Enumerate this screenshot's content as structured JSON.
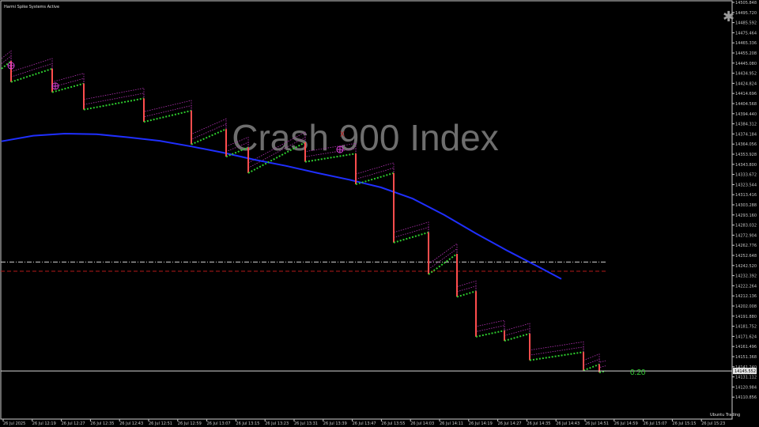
{
  "window": {
    "indicator_status": "Harmi Spike Systems Active",
    "watermark": "Crash 900 Index",
    "countdown": "0:20",
    "footer_mode": "Ubuntu Trading",
    "settings_icon": "asterisk-icon",
    "marker_label": "X"
  },
  "colors": {
    "background": "#000000",
    "up_steps": "#2ecc2e",
    "spike": "#ff4d4d",
    "moving_average": "#1f2fff",
    "bands": "#b533b5",
    "level_line_1": "#cfcfcf",
    "level_line_2": "#b31a1a",
    "current_price_line": "#d8d8d8",
    "marker": "#b31a1a",
    "circle_marker": "#d63fd6"
  },
  "price_box": "14145.552",
  "chart_data": {
    "type": "line",
    "title": "Crash 900 Index",
    "y_axis_labels": [
      "14505.848",
      "14495.720",
      "14485.592",
      "14475.464",
      "14465.336",
      "14455.208",
      "14445.080",
      "14434.952",
      "14424.824",
      "14414.696",
      "14404.568",
      "14394.440",
      "14384.312",
      "14374.184",
      "14364.056",
      "14353.928",
      "14343.800",
      "14333.672",
      "14323.544",
      "14313.416",
      "14303.288",
      "14293.160",
      "14283.032",
      "14272.904",
      "14262.776",
      "14252.648",
      "14242.520",
      "14232.392",
      "14222.264",
      "14212.136",
      "14202.008",
      "14191.880",
      "14181.752",
      "14171.624",
      "14161.496",
      "14151.368",
      "14141.240",
      "14131.112",
      "14120.984",
      "14110.856"
    ],
    "x_axis_labels": [
      "26 Jul 2025",
      "26 Jul 12:19",
      "26 Jul 12:27",
      "26 Jul 12:35",
      "26 Jul 12:43",
      "26 Jul 12:51",
      "26 Jul 12:59",
      "26 Jul 13:07",
      "26 Jul 13:15",
      "26 Jul 13:23",
      "26 Jul 13:31",
      "26 Jul 13:39",
      "26 Jul 13:47",
      "26 Jul 13:55",
      "26 Jul 14:03",
      "26 Jul 14:11",
      "26 Jul 14:19",
      "26 Jul 14:27",
      "26 Jul 14:35",
      "26 Jul 14:43",
      "26 Jul 14:51",
      "26 Jul 14:59",
      "26 Jul 15:07",
      "26 Jul 15:15",
      "26 Jul 15:23"
    ],
    "ylim": [
      14110.856,
      14505.848
    ],
    "current_price": 14145.552,
    "horizontal_levels": [
      14252.0,
      14243.0
    ],
    "price_path": [
      [
        0,
        14441.0
      ],
      [
        3,
        14448.5
      ],
      [
        3,
        14428.0
      ],
      [
        16,
        14441.0
      ],
      [
        16,
        14418.0
      ],
      [
        26,
        14426.5
      ],
      [
        26,
        14401.0
      ],
      [
        45,
        14412.0
      ],
      [
        45,
        14389.0
      ],
      [
        60,
        14400.0
      ],
      [
        60,
        14367.0
      ],
      [
        71,
        14382.0
      ],
      [
        71,
        14355.0
      ],
      [
        78,
        14364.0
      ],
      [
        78,
        14339.0
      ],
      [
        96,
        14369.0
      ],
      [
        96,
        14350.0
      ],
      [
        112,
        14358.0
      ],
      [
        112,
        14328.0
      ],
      [
        124,
        14339.0
      ],
      [
        124,
        14271.0
      ],
      [
        135,
        14281.0
      ],
      [
        135,
        14240.0
      ],
      [
        144,
        14260.0
      ],
      [
        144,
        14218.0
      ],
      [
        150,
        14223.5
      ],
      [
        150,
        14179.0
      ],
      [
        159,
        14185.0
      ],
      [
        159,
        14175.0
      ],
      [
        167,
        14182.0
      ],
      [
        167,
        14156.0
      ],
      [
        184,
        14164.0
      ],
      [
        184,
        14146.0
      ],
      [
        189,
        14152.0
      ],
      [
        189,
        14144.0
      ],
      [
        191,
        14145.5
      ]
    ],
    "moving_average": [
      [
        0,
        14370.0
      ],
      [
        10,
        14375.5
      ],
      [
        20,
        14377.5
      ],
      [
        30,
        14377.0
      ],
      [
        40,
        14374.0
      ],
      [
        50,
        14370.5
      ],
      [
        60,
        14365.0
      ],
      [
        70,
        14359.0
      ],
      [
        80,
        14352.0
      ],
      [
        90,
        14346.0
      ],
      [
        100,
        14339.0
      ],
      [
        110,
        14332.5
      ],
      [
        120,
        14325.0
      ],
      [
        130,
        14314.0
      ],
      [
        140,
        14298.0
      ],
      [
        150,
        14280.0
      ],
      [
        160,
        14263.0
      ],
      [
        170,
        14247.0
      ],
      [
        177,
        14235.5
      ]
    ],
    "band_offset": 5,
    "spike_markers": [
      [
        3,
        14444.0
      ],
      [
        17,
        14424.0
      ],
      [
        107,
        14362.0
      ]
    ],
    "x_marker": [
      84,
      14377.0
    ]
  }
}
